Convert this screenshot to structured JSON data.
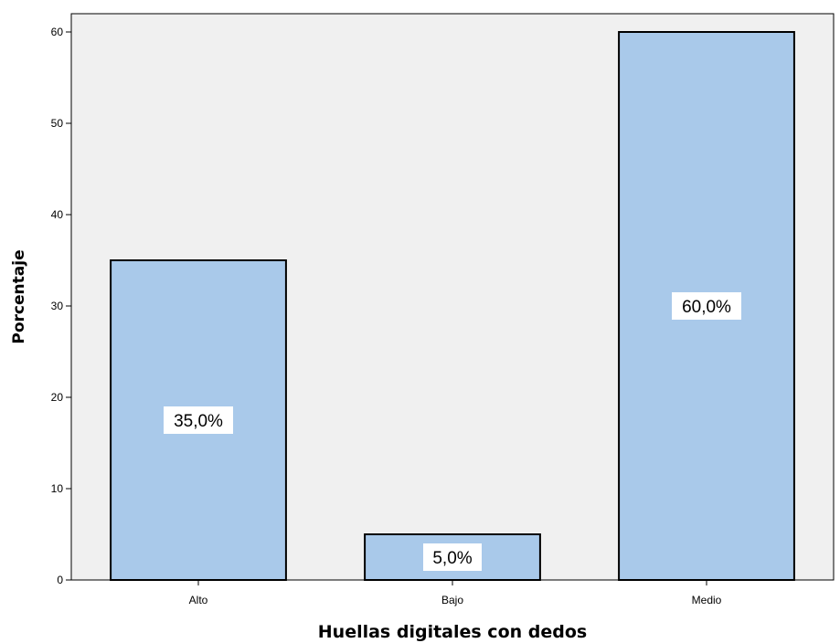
{
  "chart_data": {
    "type": "bar",
    "categories": [
      "Alto",
      "Bajo",
      "Medio"
    ],
    "values": [
      35.0,
      5.0,
      60.0
    ],
    "data_labels": [
      "35,0%",
      "5,0%",
      "60,0%"
    ],
    "title": "",
    "xlabel": "Huellas digitales con dedos",
    "ylabel": "Porcentaje",
    "ylim": [
      0,
      60
    ],
    "yticks": [
      0,
      10,
      20,
      30,
      40,
      50,
      60
    ],
    "ytick_labels": [
      "0",
      "10",
      "20",
      "30",
      "40",
      "50",
      "60"
    ],
    "grid": false,
    "legend": "none",
    "colors": {
      "bar_fill": "#a9c9ea",
      "bar_stroke": "#000000",
      "plot_background": "#f0f0f0",
      "label_background": "#ffffff"
    }
  }
}
